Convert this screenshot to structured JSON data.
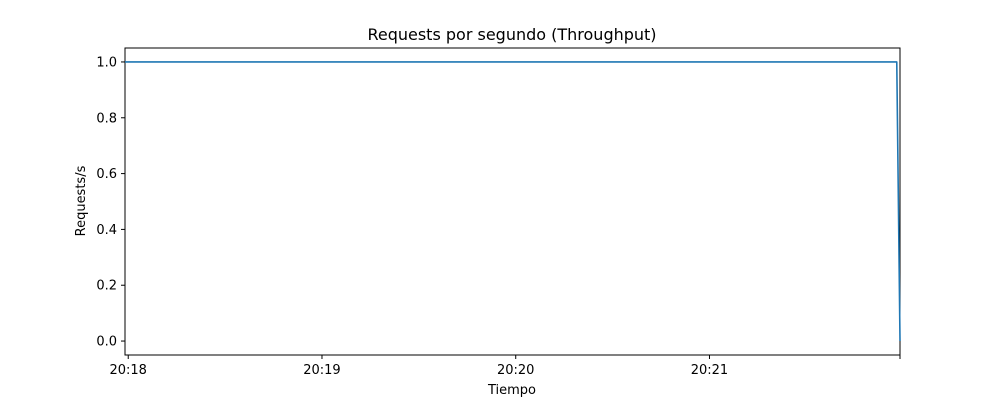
{
  "chart_data": {
    "type": "line",
    "title": "Requests por segundo (Throughput)",
    "xlabel": "Tiempo",
    "ylabel": "Requests/s",
    "x_unit": "time (HH:MM:SS)",
    "xlim": [
      "20:17:59",
      "20:21:59"
    ],
    "ylim": [
      -0.05,
      1.05
    ],
    "x_ticks": [
      {
        "value": "20:18:00",
        "label": "20:18"
      },
      {
        "value": "20:19:00",
        "label": "20:19"
      },
      {
        "value": "20:20:00",
        "label": "20:20"
      },
      {
        "value": "20:21:00",
        "label": "20:21"
      },
      {
        "value": "20:21:59",
        "label": ""
      }
    ],
    "y_ticks": [
      0.0,
      0.2,
      0.4,
      0.6,
      0.8,
      1.0
    ],
    "y_tick_labels": [
      "0.0",
      "0.2",
      "0.4",
      "0.6",
      "0.8",
      "1.0"
    ],
    "grid": false,
    "series": [
      {
        "color": "#1f77b4",
        "points": [
          {
            "x": "20:17:59",
            "y": 1.0
          },
          {
            "x": "20:21:58",
            "y": 1.0
          },
          {
            "x": "20:21:59",
            "y": 0.0
          }
        ]
      }
    ]
  }
}
